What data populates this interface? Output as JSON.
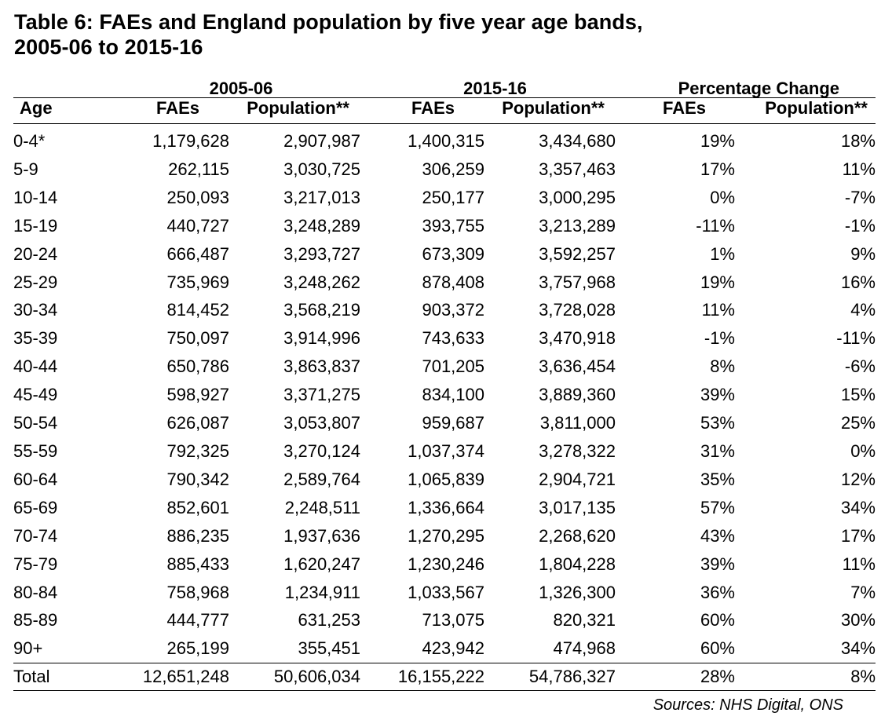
{
  "title": {
    "line1": "Table 6: FAEs and England population by five year age bands,",
    "line2": "2005-06 to 2015-16"
  },
  "headers": {
    "groups": [
      "2005-06",
      "2015-16",
      "Percentage Change"
    ],
    "columns": [
      "Age",
      "FAEs",
      "Population**",
      "FAEs",
      "Population**",
      "FAEs",
      "Population**"
    ]
  },
  "rows": [
    [
      "0-4*",
      "1,179,628",
      "2,907,987",
      "1,400,315",
      "3,434,680",
      "19%",
      "18%"
    ],
    [
      "5-9",
      "262,115",
      "3,030,725",
      "306,259",
      "3,357,463",
      "17%",
      "11%"
    ],
    [
      "10-14",
      "250,093",
      "3,217,013",
      "250,177",
      "3,000,295",
      "0%",
      "-7%"
    ],
    [
      "15-19",
      "440,727",
      "3,248,289",
      "393,755",
      "3,213,289",
      "-11%",
      "-1%"
    ],
    [
      "20-24",
      "666,487",
      "3,293,727",
      "673,309",
      "3,592,257",
      "1%",
      "9%"
    ],
    [
      "25-29",
      "735,969",
      "3,248,262",
      "878,408",
      "3,757,968",
      "19%",
      "16%"
    ],
    [
      "30-34",
      "814,452",
      "3,568,219",
      "903,372",
      "3,728,028",
      "11%",
      "4%"
    ],
    [
      "35-39",
      "750,097",
      "3,914,996",
      "743,633",
      "3,470,918",
      "-1%",
      "-11%"
    ],
    [
      "40-44",
      "650,786",
      "3,863,837",
      "701,205",
      "3,636,454",
      "8%",
      "-6%"
    ],
    [
      "45-49",
      "598,927",
      "3,371,275",
      "834,100",
      "3,889,360",
      "39%",
      "15%"
    ],
    [
      "50-54",
      "626,087",
      "3,053,807",
      "959,687",
      "3,811,000",
      "53%",
      "25%"
    ],
    [
      "55-59",
      "792,325",
      "3,270,124",
      "1,037,374",
      "3,278,322",
      "31%",
      "0%"
    ],
    [
      "60-64",
      "790,342",
      "2,589,764",
      "1,065,839",
      "2,904,721",
      "35%",
      "12%"
    ],
    [
      "65-69",
      "852,601",
      "2,248,511",
      "1,336,664",
      "3,017,135",
      "57%",
      "34%"
    ],
    [
      "70-74",
      "886,235",
      "1,937,636",
      "1,270,295",
      "2,268,620",
      "43%",
      "17%"
    ],
    [
      "75-79",
      "885,433",
      "1,620,247",
      "1,230,246",
      "1,804,228",
      "39%",
      "11%"
    ],
    [
      "80-84",
      "758,968",
      "1,234,911",
      "1,033,567",
      "1,326,300",
      "36%",
      "7%"
    ],
    [
      "85-89",
      "444,777",
      "631,253",
      "713,075",
      "820,321",
      "60%",
      "30%"
    ],
    [
      "90+",
      "265,199",
      "355,451",
      "423,942",
      "474,968",
      "60%",
      "34%"
    ]
  ],
  "total": [
    "Total",
    "12,651,248",
    "50,606,034",
    "16,155,222",
    "54,786,327",
    "28%",
    "8%"
  ],
  "source": "Sources: NHS Digital, ONS"
}
